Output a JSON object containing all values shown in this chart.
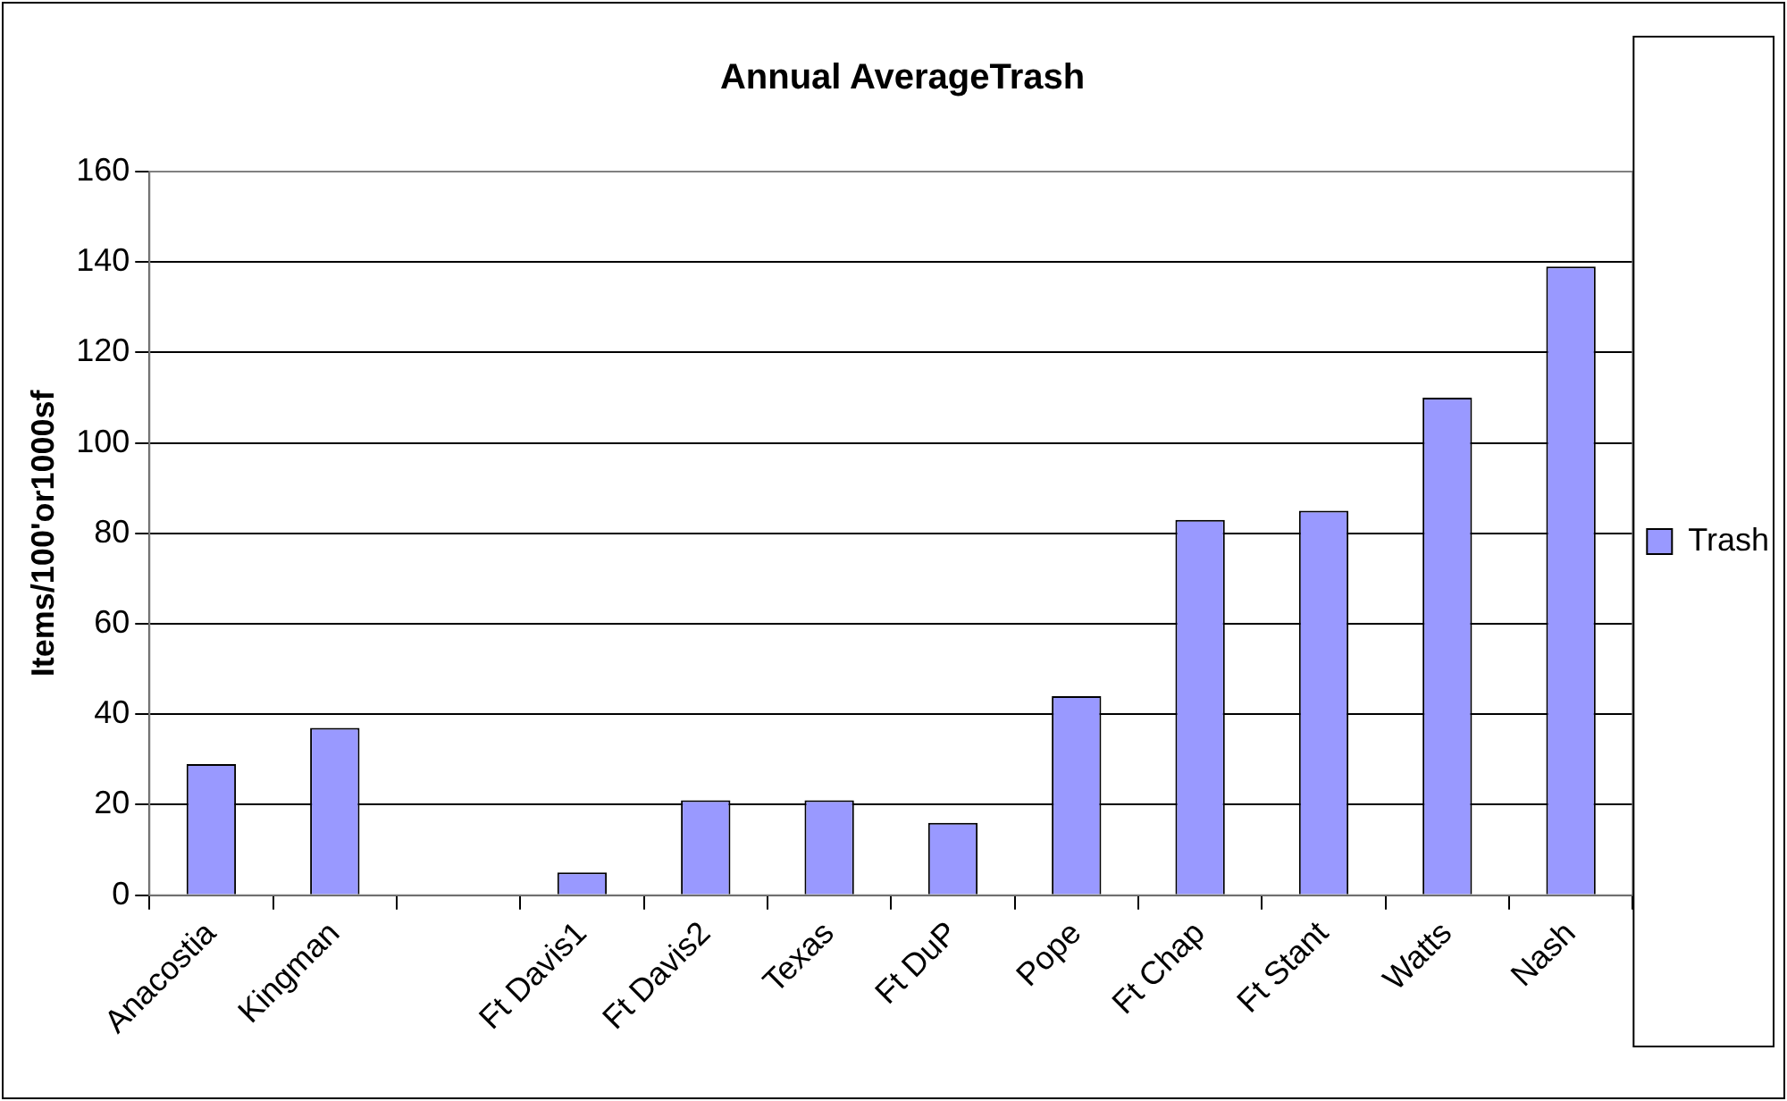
{
  "chart_data": {
    "type": "bar",
    "title": "Annual AverageTrash",
    "ylabel": "Items/100'or1000sf",
    "categories": [
      "Anacostia",
      "Kingman",
      null,
      "Ft Davis1",
      "Ft Davis2",
      "Texas",
      "Ft DuP",
      "Pope",
      "Ft Chap",
      "Ft Stant",
      "Watts",
      "Nash"
    ],
    "series": [
      {
        "name": "Trash",
        "color": "#9999ff",
        "values": [
          29,
          37,
          null,
          5,
          21,
          21,
          16,
          44,
          83,
          85,
          110,
          139
        ]
      }
    ],
    "ylim": [
      0,
      160
    ],
    "yticks": [
      0,
      20,
      40,
      60,
      80,
      100,
      120,
      140,
      160
    ],
    "grid": "y",
    "legend": "right"
  }
}
